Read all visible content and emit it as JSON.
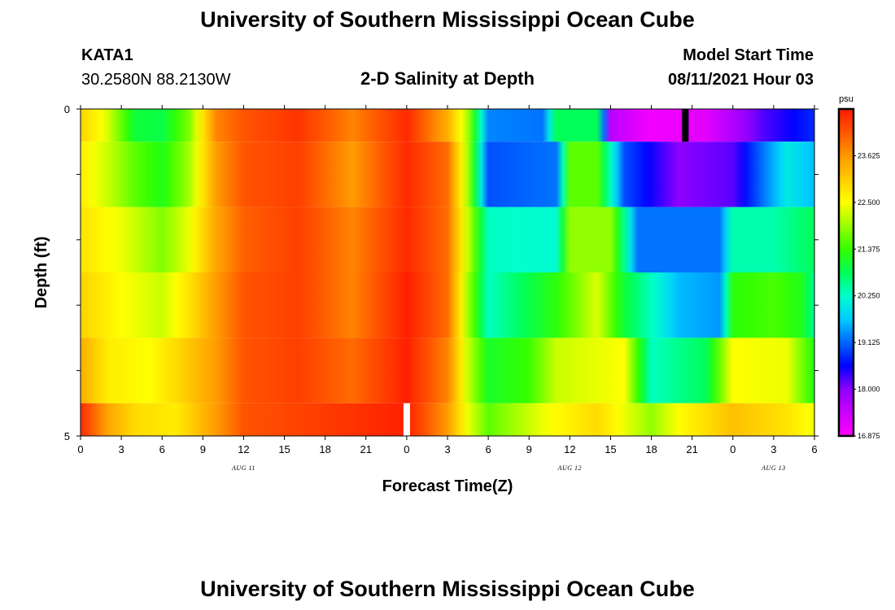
{
  "header": {
    "title": "University of Southern Mississippi Ocean Cube",
    "station": "KATA1",
    "coordinates": "30.2580N  88.2130W",
    "model_label": "Model Start Time",
    "model_time": "08/11/2021 Hour 03",
    "footer_title": "University of Southern Mississippi Ocean Cube"
  },
  "colors": {
    "colormap": [
      "#ff00ff",
      "#cc00ff",
      "#8f00ff",
      "#0000ff",
      "#0066ff",
      "#00ccff",
      "#00ffcc",
      "#00ff55",
      "#33ff00",
      "#99ff00",
      "#ffff00",
      "#ffcc00",
      "#ff9900",
      "#ff5500",
      "#ff1a00"
    ],
    "marker_now": "#ffffff",
    "marker_start": "#000000"
  },
  "chart_data": {
    "type": "heatmap",
    "title": "2-D Salinity at Depth",
    "xlabel": "Forecast Time(Z)",
    "ylabel": "Depth (ft)",
    "unit": "psu",
    "x_hours": [
      0,
      54
    ],
    "x_tick_labels": [
      "0",
      "3",
      "6",
      "9",
      "12",
      "15",
      "18",
      "21",
      "0",
      "3",
      "6",
      "9",
      "12",
      "15",
      "18",
      "21",
      "0",
      "3",
      "6"
    ],
    "x_tick_hours": [
      0,
      3,
      6,
      9,
      12,
      15,
      18,
      21,
      24,
      27,
      30,
      33,
      36,
      39,
      42,
      45,
      48,
      51,
      54
    ],
    "date_labels": [
      {
        "text": "AUG  11",
        "hour": 12
      },
      {
        "text": "AUG  12",
        "hour": 36
      },
      {
        "text": "AUG  13",
        "hour": 51
      }
    ],
    "y_range": [
      0,
      5
    ],
    "y_tick_labels": [
      "0",
      "5"
    ],
    "colorbar": {
      "range": [
        16.875,
        24.75
      ],
      "labels": [
        "16.875",
        "18.000",
        "19.125",
        "20.250",
        "21.375",
        "22.500",
        "23.625"
      ],
      "values": [
        16.875,
        18.0,
        19.125,
        20.25,
        21.375,
        22.5,
        23.625
      ]
    },
    "markers": [
      {
        "name": "forecast-now-marker",
        "hour": 24,
        "depth_from": 4.5,
        "depth_to": 5,
        "color": "white"
      },
      {
        "name": "model-start-marker",
        "hour": 44.5,
        "depth_from": 0,
        "depth_to": 0.5,
        "color": "black"
      }
    ],
    "layers": [
      {
        "depth_from": 0.0,
        "depth_to": 0.5,
        "keys": [
          [
            0,
            23.0
          ],
          [
            2,
            22.3
          ],
          [
            4,
            21.0
          ],
          [
            6,
            20.9
          ],
          [
            8,
            21.8
          ],
          [
            10,
            23.8
          ],
          [
            12,
            24.2
          ],
          [
            16,
            24.5
          ],
          [
            20,
            23.8
          ],
          [
            24,
            24.6
          ],
          [
            27,
            23.4
          ],
          [
            28.5,
            22.0
          ],
          [
            30,
            19.3
          ],
          [
            34,
            19.2
          ],
          [
            35,
            20.8
          ],
          [
            38,
            20.8
          ],
          [
            39,
            17.6
          ],
          [
            42,
            17.0
          ],
          [
            46,
            17.2
          ],
          [
            50,
            18.2
          ],
          [
            54,
            18.8
          ]
        ]
      },
      {
        "depth_from": 0.5,
        "depth_to": 1.5,
        "keys": [
          [
            0,
            22.7
          ],
          [
            2,
            22.2
          ],
          [
            4,
            21.6
          ],
          [
            6,
            21.2
          ],
          [
            8,
            22.0
          ],
          [
            10,
            23.6
          ],
          [
            12,
            24.2
          ],
          [
            16,
            24.4
          ],
          [
            20,
            23.6
          ],
          [
            24,
            24.6
          ],
          [
            27,
            24.0
          ],
          [
            28.5,
            22.0
          ],
          [
            30,
            19.0
          ],
          [
            35,
            19.2
          ],
          [
            36,
            21.6
          ],
          [
            38,
            21.6
          ],
          [
            40,
            19.0
          ],
          [
            44,
            18.0
          ],
          [
            48,
            18.2
          ],
          [
            52,
            20.0
          ],
          [
            54,
            19.6
          ]
        ]
      },
      {
        "depth_from": 1.5,
        "depth_to": 2.5,
        "keys": [
          [
            0,
            22.8
          ],
          [
            3,
            22.4
          ],
          [
            6,
            21.8
          ],
          [
            8,
            22.4
          ],
          [
            10,
            23.5
          ],
          [
            12,
            24.1
          ],
          [
            16,
            24.4
          ],
          [
            20,
            23.8
          ],
          [
            24,
            24.6
          ],
          [
            27,
            24.0
          ],
          [
            28.5,
            22.2
          ],
          [
            30,
            20.3
          ],
          [
            35,
            20.2
          ],
          [
            36,
            21.9
          ],
          [
            39,
            21.9
          ],
          [
            41,
            19.2
          ],
          [
            47,
            19.2
          ],
          [
            48,
            20.4
          ],
          [
            51,
            20.4
          ],
          [
            54,
            20.8
          ]
        ]
      },
      {
        "depth_from": 2.5,
        "depth_to": 3.5,
        "keys": [
          [
            0,
            23.0
          ],
          [
            3,
            22.5
          ],
          [
            6,
            22.2
          ],
          [
            8,
            22.8
          ],
          [
            10,
            23.6
          ],
          [
            12,
            24.2
          ],
          [
            16,
            24.4
          ],
          [
            20,
            23.8
          ],
          [
            24,
            24.7
          ],
          [
            27,
            24.0
          ],
          [
            28.5,
            22.0
          ],
          [
            30,
            20.3
          ],
          [
            35,
            21.3
          ],
          [
            38,
            22.3
          ],
          [
            40,
            21.0
          ],
          [
            44,
            19.6
          ],
          [
            47,
            19.4
          ],
          [
            48,
            21.3
          ],
          [
            51,
            21.5
          ],
          [
            53,
            21.2
          ],
          [
            54,
            20.5
          ]
        ]
      },
      {
        "depth_from": 3.5,
        "depth_to": 4.5,
        "keys": [
          [
            0,
            23.4
          ],
          [
            2,
            22.7
          ],
          [
            5,
            22.5
          ],
          [
            7,
            22.9
          ],
          [
            10,
            23.6
          ],
          [
            12,
            24.2
          ],
          [
            16,
            24.4
          ],
          [
            20,
            24.0
          ],
          [
            24,
            24.7
          ],
          [
            27,
            23.8
          ],
          [
            28.5,
            22.2
          ],
          [
            30,
            21.1
          ],
          [
            33,
            21.4
          ],
          [
            35,
            22.2
          ],
          [
            40,
            22.5
          ],
          [
            42,
            20.3
          ],
          [
            46,
            20.8
          ],
          [
            48,
            22.5
          ],
          [
            52,
            22.4
          ],
          [
            54,
            21.2
          ]
        ]
      },
      {
        "depth_from": 4.5,
        "depth_to": 5.0,
        "keys": [
          [
            0,
            24.6
          ],
          [
            2,
            23.5
          ],
          [
            4,
            22.9
          ],
          [
            7,
            22.7
          ],
          [
            10,
            23.6
          ],
          [
            12,
            24.2
          ],
          [
            17,
            24.4
          ],
          [
            22,
            24.6
          ],
          [
            24,
            24.7
          ],
          [
            27,
            23.6
          ],
          [
            28.5,
            22.4
          ],
          [
            30,
            21.6
          ],
          [
            34,
            22.4
          ],
          [
            38,
            22.9
          ],
          [
            42,
            21.9
          ],
          [
            44,
            22.5
          ],
          [
            48,
            23.2
          ],
          [
            52,
            22.8
          ],
          [
            54,
            22.4
          ]
        ]
      }
    ]
  }
}
